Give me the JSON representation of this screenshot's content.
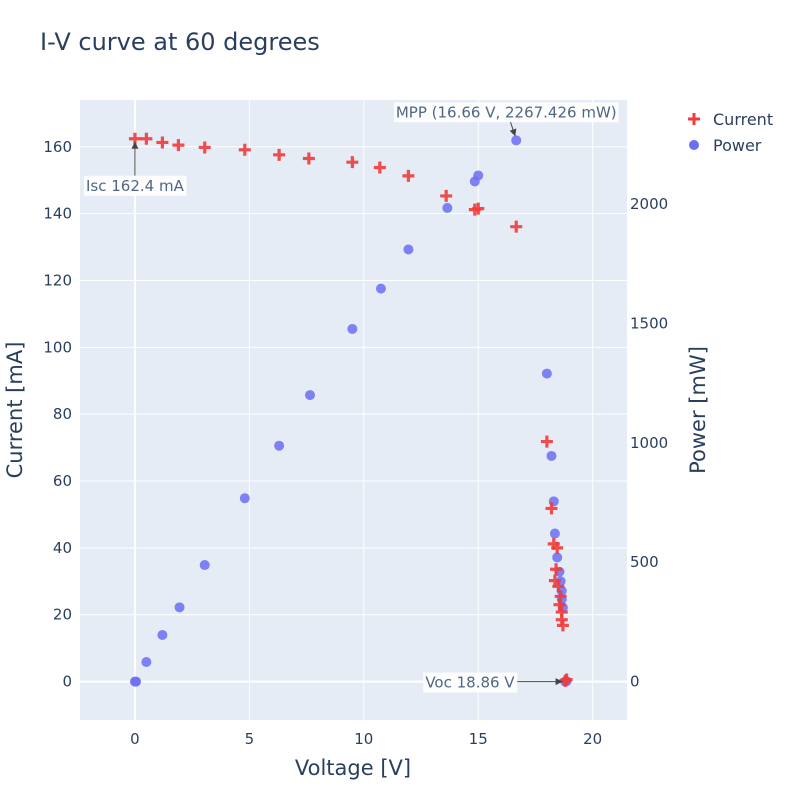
{
  "chart_data": {
    "type": "scatter",
    "title": "I-V curve at 60 degrees",
    "xlabel": "Voltage [V]",
    "ylabel": "Current [mA]",
    "y2label": "Power [mW]",
    "xlim": [
      -2.4,
      21.5
    ],
    "ylim": [
      -11.5,
      174
    ],
    "y2lim": [
      -161,
      2436
    ],
    "xticks": [
      0,
      5,
      10,
      15,
      20
    ],
    "yticks": [
      0,
      20,
      40,
      60,
      80,
      100,
      120,
      140,
      160
    ],
    "y2ticks": [
      0,
      500,
      1000,
      1500,
      2000
    ],
    "legend_position": "top-right",
    "series": [
      {
        "name": "Current",
        "marker": "cross",
        "color": "#ef3b3b",
        "axis": "y",
        "points": [
          [
            0,
            162.4
          ],
          [
            0.5,
            162.4
          ],
          [
            1.2,
            161.3
          ],
          [
            1.9,
            160.5
          ],
          [
            3.05,
            159.8
          ],
          [
            4.8,
            159.1
          ],
          [
            6.3,
            157.6
          ],
          [
            7.6,
            156.5
          ],
          [
            9.5,
            155.4
          ],
          [
            10.7,
            153.8
          ],
          [
            11.95,
            151.3
          ],
          [
            13.6,
            145.3
          ],
          [
            14.85,
            141.2
          ],
          [
            15.0,
            141.5
          ],
          [
            16.66,
            136.1
          ],
          [
            18.0,
            71.8
          ],
          [
            18.2,
            51.8
          ],
          [
            18.3,
            41.2
          ],
          [
            18.45,
            40.0
          ],
          [
            18.4,
            33.6
          ],
          [
            18.35,
            30.2
          ],
          [
            18.5,
            28.5
          ],
          [
            18.6,
            25.5
          ],
          [
            18.55,
            23.0
          ],
          [
            18.65,
            20.8
          ],
          [
            18.65,
            18.5
          ],
          [
            18.7,
            16.8
          ],
          [
            18.86,
            0.6
          ],
          [
            18.8,
            0.2
          ]
        ]
      },
      {
        "name": "Power",
        "marker": "circle",
        "color": "#6b6ff2",
        "axis": "y2",
        "points": [
          [
            0,
            0
          ],
          [
            0.05,
            0
          ],
          [
            0.5,
            82
          ],
          [
            1.2,
            195
          ],
          [
            1.95,
            311
          ],
          [
            3.05,
            488
          ],
          [
            4.8,
            768
          ],
          [
            6.3,
            988
          ],
          [
            7.65,
            1200
          ],
          [
            9.5,
            1477
          ],
          [
            10.75,
            1646
          ],
          [
            11.95,
            1810
          ],
          [
            13.65,
            1984
          ],
          [
            14.85,
            2095
          ],
          [
            15.0,
            2120
          ],
          [
            16.66,
            2267
          ],
          [
            18.0,
            1290
          ],
          [
            18.2,
            945
          ],
          [
            18.3,
            755
          ],
          [
            18.35,
            620
          ],
          [
            18.45,
            520
          ],
          [
            18.55,
            460
          ],
          [
            18.6,
            420
          ],
          [
            18.65,
            380
          ],
          [
            18.65,
            345
          ],
          [
            18.7,
            310
          ],
          [
            18.86,
            2
          ],
          [
            18.8,
            0
          ]
        ]
      }
    ],
    "annotations": [
      {
        "text": "MPP (16.66 V, 2267.426 mW)",
        "x": 16.66,
        "y": 2267.4,
        "axis": "y2"
      },
      {
        "text": "Isc 162.4 mA",
        "x": 0,
        "y": 162.4,
        "axis": "y"
      },
      {
        "text": "Voc 18.86 V",
        "x": 18.86,
        "y": 0,
        "axis": "y"
      }
    ]
  }
}
